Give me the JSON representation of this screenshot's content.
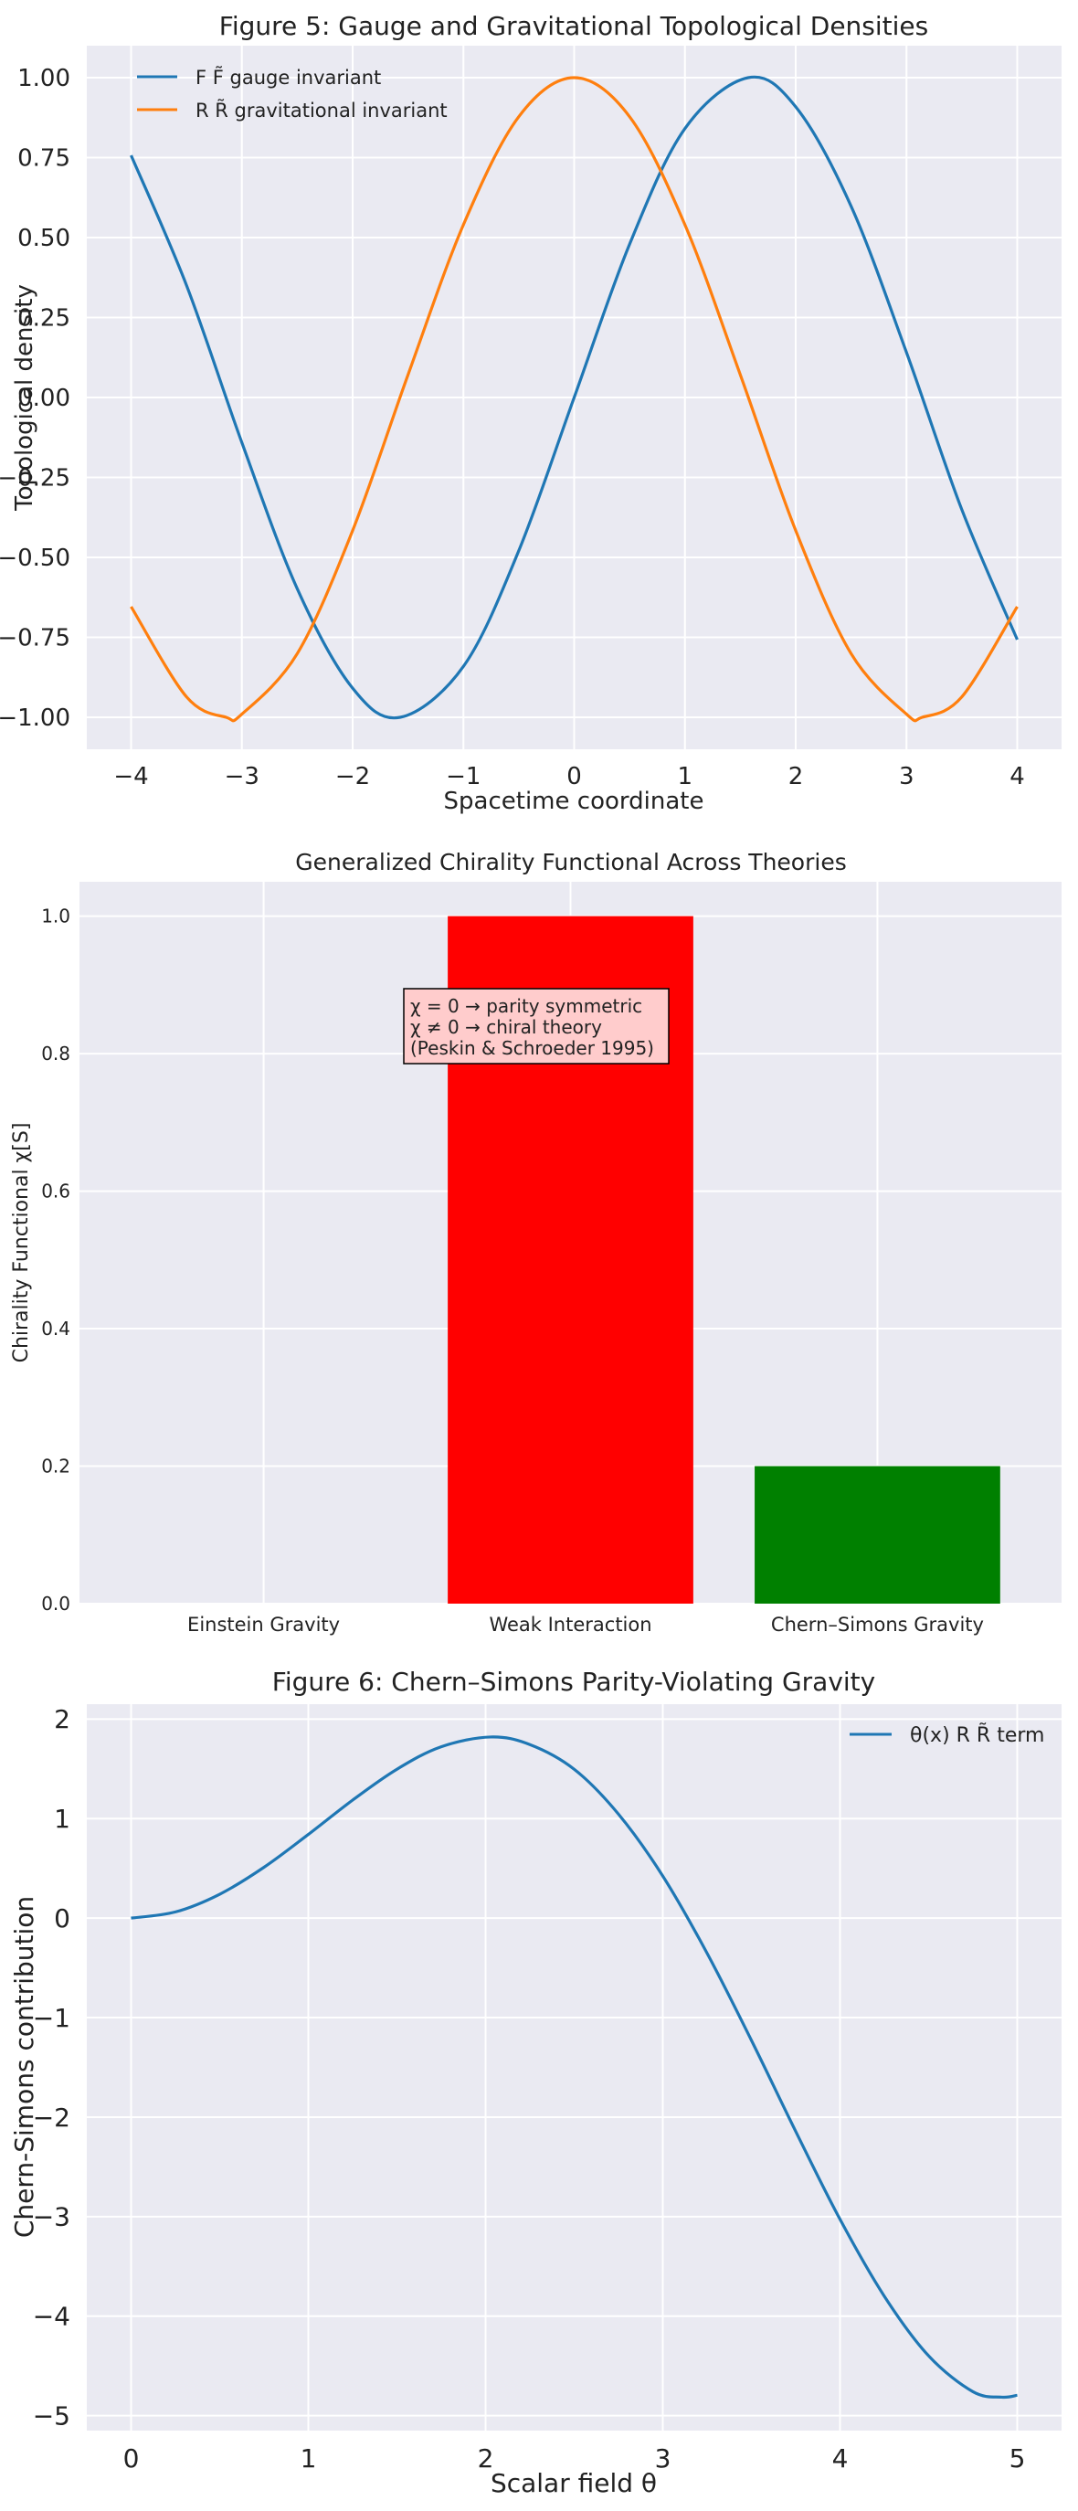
{
  "chart_data": [
    {
      "type": "line",
      "title": "Figure 5: Gauge and Gravitational Topological Densities",
      "xlabel": "Spacetime coordinate",
      "ylabel": "Topological density",
      "xlim": [
        -4.4,
        4.4
      ],
      "ylim": [
        -1.1,
        1.1
      ],
      "xticks": [
        "−4",
        "−3",
        "−2",
        "−1",
        "0",
        "1",
        "2",
        "3",
        "4"
      ],
      "yticks": [
        "−1.00",
        "−0.75",
        "−0.50",
        "−0.25",
        "0.00",
        "0.25",
        "0.50",
        "0.75",
        "1.00"
      ],
      "legend_position": "top-left",
      "grid": true,
      "series": [
        {
          "name": "F F̃ gauge invariant",
          "color": "#1f77b4",
          "x": [
            -4.0,
            -3.5,
            -3.0,
            -2.5,
            -2.0,
            -1.5708,
            -1.0,
            -0.5,
            0.0,
            0.5,
            1.0,
            1.5708,
            2.0,
            2.5,
            3.0,
            3.5,
            4.0
          ],
          "y": [
            0.757,
            0.351,
            -0.141,
            -0.598,
            -0.909,
            -1.0,
            -0.841,
            -0.479,
            0.0,
            0.479,
            0.841,
            1.0,
            0.909,
            0.598,
            0.141,
            -0.351,
            -0.757
          ]
        },
        {
          "name": "R R̃ gravitational invariant",
          "color": "#ff7f0e",
          "x": [
            -4.0,
            -3.5,
            -3.1416,
            -3.0,
            -2.5,
            -2.0,
            -1.5,
            -1.0,
            -0.5,
            0.0,
            0.5,
            1.0,
            1.5,
            2.0,
            2.5,
            3.0,
            3.1416,
            3.5,
            4.0
          ],
          "y": [
            -0.654,
            -0.936,
            -1.0,
            -0.99,
            -0.801,
            -0.416,
            0.071,
            0.54,
            0.878,
            1.0,
            0.878,
            0.54,
            0.071,
            -0.416,
            -0.801,
            -0.99,
            -1.0,
            -0.936,
            -0.654
          ]
        }
      ]
    },
    {
      "type": "bar",
      "title": "Generalized Chirality Functional Across Theories",
      "xlabel": "",
      "ylabel": "Chirality Functional χ[S]",
      "ylim": [
        0,
        1.05
      ],
      "yticks": [
        "0.0",
        "0.2",
        "0.4",
        "0.6",
        "0.8",
        "1.0"
      ],
      "categories": [
        "Einstein Gravity",
        "Weak Interaction",
        "Chern–Simons Gravity"
      ],
      "values": [
        0.0,
        1.0,
        0.2
      ],
      "colors": [
        "#0000ff",
        "#ff0000",
        "#008000"
      ],
      "grid": true,
      "annotation": {
        "lines": [
          "χ = 0 → parity symmetric",
          "χ ≠ 0 → chiral theory",
          "(Peskin & Schroeder 1995)"
        ],
        "box_color": "#ffcccc"
      }
    },
    {
      "type": "line",
      "title": "Figure 6: Chern–Simons Parity-Violating Gravity",
      "xlabel": "Scalar field θ",
      "ylabel": "Chern-Simons contribution",
      "xlim": [
        -0.25,
        5.25
      ],
      "ylim": [
        -5.15,
        2.15
      ],
      "xticks": [
        "0",
        "1",
        "2",
        "3",
        "4",
        "5"
      ],
      "yticks": [
        "−5",
        "−4",
        "−3",
        "−2",
        "−1",
        "0",
        "1",
        "2"
      ],
      "legend_position": "top-right",
      "grid": true,
      "series": [
        {
          "name": "θ(x) R R̃ term",
          "color": "#1f77b4",
          "x": [
            0.0,
            0.25,
            0.5,
            0.75,
            1.0,
            1.25,
            1.5,
            1.75,
            2.0288,
            2.25,
            2.5,
            2.75,
            3.0,
            3.25,
            3.5,
            3.75,
            4.0,
            4.25,
            4.5,
            4.75,
            4.9132,
            5.0
          ],
          "y": [
            0.0,
            0.062,
            0.24,
            0.511,
            0.841,
            1.186,
            1.496,
            1.722,
            1.82,
            1.744,
            1.496,
            1.045,
            0.423,
            -0.353,
            -1.228,
            -2.143,
            -3.027,
            -3.8,
            -4.399,
            -4.759,
            -4.814,
            -4.795
          ]
        }
      ]
    }
  ]
}
